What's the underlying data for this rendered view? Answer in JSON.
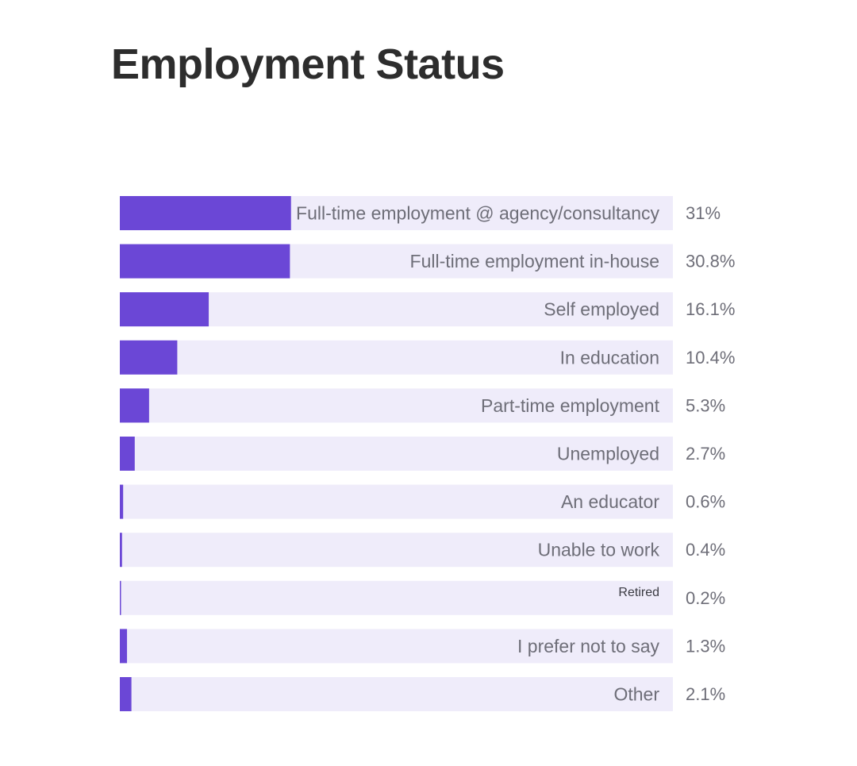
{
  "title": "Employment Status",
  "colors": {
    "bar_fill": "#6b47d6",
    "track": "#efecfa",
    "label": "#6e6e78",
    "title": "#2d2d2d"
  },
  "chart_data": {
    "type": "bar",
    "orientation": "horizontal",
    "title": "Employment Status",
    "xlabel": "",
    "ylabel": "",
    "xlim": [
      0,
      100
    ],
    "grid": false,
    "categories": [
      "Full-time employment @ agency/consultancy",
      "Full-time employment in-house",
      "Self employed",
      "In education",
      "Part-time employment",
      "Unemployed",
      "An educator",
      "Unable to work",
      "Retired",
      "I prefer not to say",
      "Other"
    ],
    "values": [
      31,
      30.8,
      16.1,
      10.4,
      5.3,
      2.7,
      0.6,
      0.4,
      0.2,
      1.3,
      2.1
    ],
    "value_labels": [
      "31%",
      "30.8%",
      "16.1%",
      "10.4%",
      "5.3%",
      "2.7%",
      "0.6%",
      "0.4%",
      "0.2%",
      "1.3%",
      "2.1%"
    ]
  }
}
